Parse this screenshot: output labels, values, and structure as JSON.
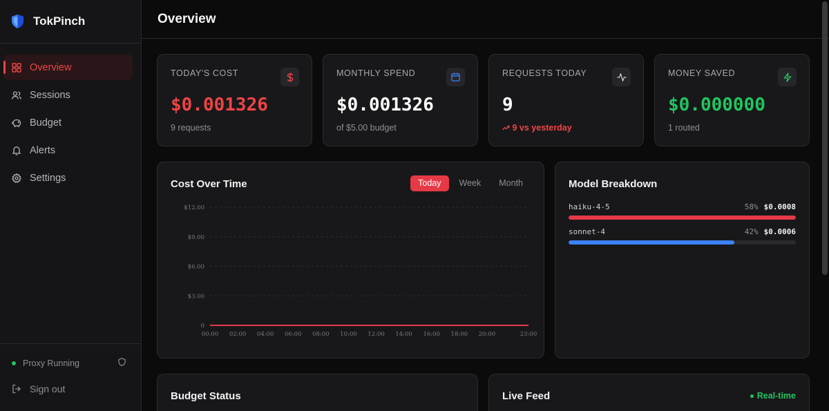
{
  "brand": {
    "name": "TokPinch",
    "accent": "#3b82f6"
  },
  "nav": {
    "items": [
      {
        "label": "Overview",
        "icon": "grid-icon",
        "active": true
      },
      {
        "label": "Sessions",
        "icon": "users-icon",
        "active": false
      },
      {
        "label": "Budget",
        "icon": "piggy-bank-icon",
        "active": false
      },
      {
        "label": "Alerts",
        "icon": "bell-icon",
        "active": false
      },
      {
        "label": "Settings",
        "icon": "gear-icon",
        "active": false
      }
    ]
  },
  "sidebar_footer": {
    "status": "Proxy Running",
    "status_color": "#22c55e",
    "sign_out": "Sign out"
  },
  "header": {
    "title": "Overview"
  },
  "stats": [
    {
      "label": "TODAY'S COST",
      "value": "$0.001326",
      "sub": "9 requests",
      "icon": "dollar-icon",
      "value_color": "#ef4444"
    },
    {
      "label": "MONTHLY SPEND",
      "value": "$0.001326",
      "sub": "of $5.00 budget",
      "icon": "calendar-icon",
      "value_color": "#ffffff"
    },
    {
      "label": "REQUESTS TODAY",
      "value": "9",
      "sub": "9 vs yesterday",
      "icon": "activity-icon",
      "value_color": "#ffffff"
    },
    {
      "label": "MONEY SAVED",
      "value": "$0.000000",
      "sub": "1 routed",
      "icon": "bolt-icon",
      "value_color": "#22c55e"
    }
  ],
  "cost_chart": {
    "title": "Cost Over Time",
    "tabs": [
      "Today",
      "Week",
      "Month"
    ],
    "active_tab": "Today"
  },
  "chart_data": {
    "type": "line",
    "x": [
      "00:00",
      "02:00",
      "04:00",
      "06:00",
      "08:00",
      "10:00",
      "12:00",
      "14:00",
      "16:00",
      "18:00",
      "20:00",
      "23:00"
    ],
    "series": [
      {
        "values": [
          0,
          0,
          0,
          0,
          0,
          0,
          0,
          0,
          0,
          0,
          0,
          0
        ],
        "color": "#e63946"
      }
    ],
    "y_ticks": [
      "$12.00",
      "$9.00",
      "$6.00",
      "$3.00",
      "0"
    ],
    "ylim": [
      0,
      12
    ],
    "grid": true
  },
  "model_breakdown": {
    "title": "Model Breakdown",
    "models": [
      {
        "name": "haiku-4-5",
        "pct": "58%",
        "cost": "$0.0008",
        "share": 1.0,
        "color": "#e63946"
      },
      {
        "name": "sonnet-4",
        "pct": "42%",
        "cost": "$0.0006",
        "share": 0.73,
        "color": "#3b82f6"
      }
    ]
  },
  "budget_status": {
    "title": "Budget Status"
  },
  "live_feed": {
    "title": "Live Feed",
    "badge": "Real-time"
  }
}
